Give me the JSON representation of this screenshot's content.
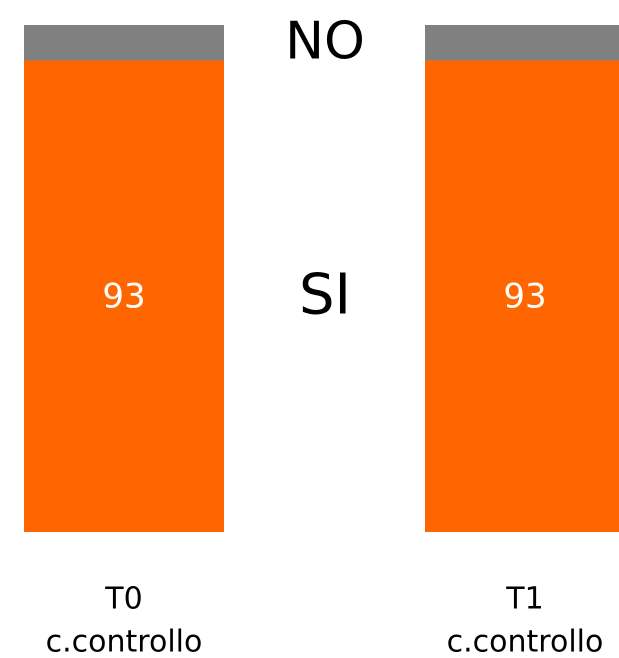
{
  "chart_data": {
    "type": "stacked_bar",
    "categories": [
      [
        "T0",
        "c.controllo"
      ],
      [
        "T1",
        "c.controllo"
      ]
    ],
    "series": [
      {
        "name": "SI",
        "color": "#ff6600",
        "values": [
          93,
          93
        ],
        "data_labels": true
      },
      {
        "name": "NO",
        "color": "#808080",
        "values": [
          7,
          7
        ],
        "data_labels": false
      }
    ]
  }
}
